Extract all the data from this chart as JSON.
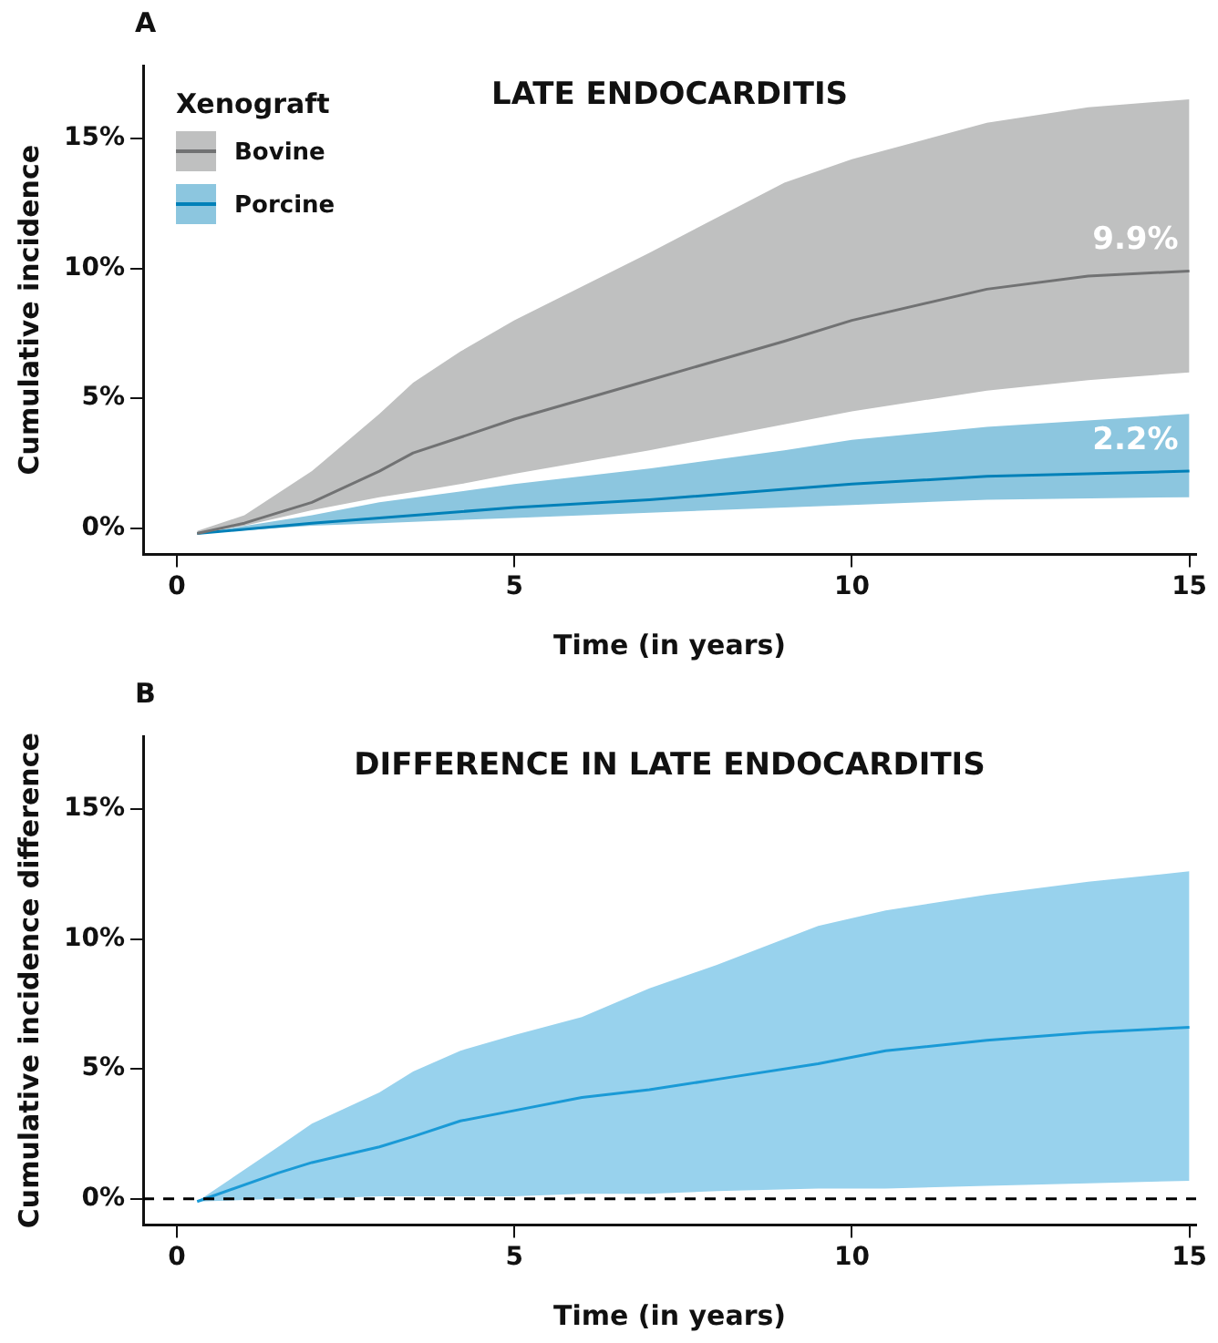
{
  "chart_data": [
    {
      "type": "line",
      "title": "LATE ENDOCARDITIS",
      "xlabel": "Time (in years)",
      "ylabel": "Cumulative incidence",
      "legend_title": "Xenograft",
      "legend": "top left",
      "grid": false,
      "marker": "none",
      "xlim": [
        -0.5,
        15.1
      ],
      "xticks": [
        0,
        5,
        10,
        15
      ],
      "ylim": [
        -1,
        17.8
      ],
      "yticks": [
        {
          "value": 0,
          "label": "0%"
        },
        {
          "value": 5,
          "label": "5%"
        },
        {
          "value": 10,
          "label": "10%"
        },
        {
          "value": 15,
          "label": "15%"
        }
      ],
      "annotations": [
        "A",
        {
          "text": "9.9%",
          "x": 15,
          "y": 9.9
        },
        {
          "text": "2.2%",
          "x": 15,
          "y": 2.2
        }
      ],
      "series": [
        {
          "name": "Bovine",
          "color": "#717273",
          "x": [
            0.3,
            1,
            2,
            3,
            3.5,
            4.2,
            5,
            7,
            9,
            10,
            12,
            13.5,
            15
          ],
          "values": [
            -0.2,
            0.2,
            1.0,
            2.2,
            2.9,
            3.5,
            4.2,
            5.7,
            7.2,
            8.0,
            9.2,
            9.7,
            9.9
          ],
          "upper": [
            -0.1,
            0.5,
            2.2,
            4.4,
            5.6,
            6.8,
            8.0,
            10.6,
            13.3,
            14.2,
            15.6,
            16.2,
            16.5
          ],
          "lower": [
            -0.2,
            0.1,
            0.7,
            1.2,
            1.4,
            1.7,
            2.1,
            3.0,
            4.0,
            4.5,
            5.3,
            5.7,
            6.0
          ]
        },
        {
          "name": "Porcine",
          "color": "#0080b8",
          "x": [
            0.3,
            2,
            3,
            5,
            7,
            9,
            10,
            12,
            15
          ],
          "values": [
            -0.2,
            0.2,
            0.4,
            0.8,
            1.1,
            1.5,
            1.7,
            2.0,
            2.2
          ],
          "upper": [
            -0.2,
            0.5,
            1.0,
            1.7,
            2.3,
            3.0,
            3.4,
            3.9,
            4.4
          ],
          "lower": [
            -0.2,
            0.1,
            0.2,
            0.4,
            0.6,
            0.8,
            0.9,
            1.1,
            1.2
          ]
        }
      ]
    },
    {
      "type": "line",
      "title": "DIFFERENCE IN LATE ENDOCARDITIS",
      "xlabel": "Time (in years)",
      "ylabel": "Cumulative incidence difference",
      "grid": false,
      "marker": "none",
      "xlim": [
        -0.5,
        15.1
      ],
      "xticks": [
        0,
        5,
        10,
        15
      ],
      "ylim": [
        -1,
        17.8
      ],
      "yticks": [
        {
          "value": 0,
          "label": "0%"
        },
        {
          "value": 5,
          "label": "5%"
        },
        {
          "value": 10,
          "label": "10%"
        },
        {
          "value": 15,
          "label": "15%"
        }
      ],
      "annotations": [
        "B"
      ],
      "ref_lines": [
        {
          "axis": "y",
          "value": 0,
          "color": "#000000",
          "line_style": "dashed"
        }
      ],
      "series": [
        {
          "color": "#1a9ad6",
          "x": [
            0.3,
            1.5,
            2,
            3,
            3.5,
            4.2,
            5,
            6,
            7,
            8,
            9.5,
            10.5,
            12,
            13.5,
            15
          ],
          "values": [
            -0.1,
            1.0,
            1.4,
            2.0,
            2.4,
            3.0,
            3.4,
            3.9,
            4.2,
            4.6,
            5.2,
            5.7,
            6.1,
            6.4,
            6.6
          ],
          "upper": [
            -0.1,
            2.0,
            2.9,
            4.1,
            4.9,
            5.7,
            6.3,
            7.0,
            8.1,
            9.0,
            10.5,
            11.1,
            11.7,
            12.2,
            12.6
          ],
          "lower": [
            -0.1,
            0.0,
            0.0,
            0.1,
            0.1,
            0.1,
            0.1,
            0.2,
            0.2,
            0.3,
            0.4,
            0.4,
            0.5,
            0.6,
            0.7
          ]
        }
      ]
    }
  ]
}
